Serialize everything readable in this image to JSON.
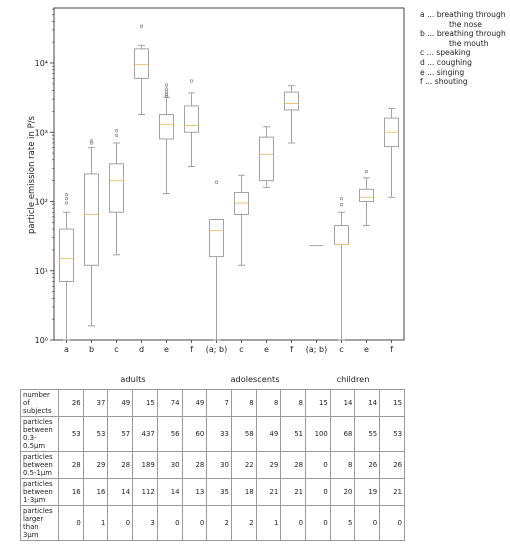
{
  "chart_data": {
    "type": "box",
    "ylabel": "particle emission rate in P/s",
    "yscale": "log",
    "ylim": [
      1,
      40000
    ],
    "yticks": [
      "10⁰",
      "10¹",
      "10²",
      "10³",
      "10⁴"
    ],
    "x_labels": [
      "a",
      "b",
      "c",
      "d",
      "e",
      "f",
      "(a; b)",
      "c",
      "e",
      "f",
      "(a; b)",
      "c",
      "e",
      "f"
    ],
    "boxes": [
      {
        "label": "a",
        "group": "adults",
        "whisker_low": 1,
        "q1": 7,
        "median": 15,
        "q3": 40,
        "whisker_high": 70,
        "outliers": [
          95,
          110,
          125
        ]
      },
      {
        "label": "b",
        "group": "adults",
        "whisker_low": 1.6,
        "q1": 12,
        "median": 65,
        "q3": 250,
        "whisker_high": 600,
        "outliers": [
          700,
          750
        ]
      },
      {
        "label": "c",
        "group": "adults",
        "whisker_low": 17,
        "q1": 70,
        "median": 200,
        "q3": 350,
        "whisker_high": 700,
        "outliers": [
          900,
          1050
        ]
      },
      {
        "label": "d",
        "group": "adults",
        "whisker_low": 1800,
        "q1": 6000,
        "median": 9500,
        "q3": 16000,
        "whisker_high": 18000,
        "outliers": [
          34000
        ]
      },
      {
        "label": "e",
        "group": "adults",
        "whisker_low": 130,
        "q1": 800,
        "median": 1300,
        "q3": 1800,
        "whisker_high": 3200,
        "outliers": [
          3300,
          3500,
          3800,
          4200,
          4800
        ]
      },
      {
        "label": "f",
        "group": "adults",
        "whisker_low": 320,
        "q1": 1000,
        "median": 1250,
        "q3": 2400,
        "whisker_high": 3700,
        "outliers": [
          5500
        ]
      },
      {
        "label": "(a; b)",
        "group": "adolescents",
        "whisker_low": 1,
        "q1": 16,
        "median": 38,
        "q3": 55,
        "whisker_high": 55,
        "outliers": [
          190
        ]
      },
      {
        "label": "c",
        "group": "adolescents",
        "whisker_low": 12,
        "q1": 65,
        "median": 95,
        "q3": 135,
        "whisker_high": 240,
        "outliers": []
      },
      {
        "label": "e",
        "group": "adolescents",
        "whisker_low": 160,
        "q1": 200,
        "median": 480,
        "q3": 850,
        "whisker_high": 1200,
        "outliers": []
      },
      {
        "label": "f",
        "group": "adolescents",
        "whisker_low": 700,
        "q1": 2100,
        "median": 2600,
        "q3": 3800,
        "whisker_high": 4700,
        "outliers": []
      },
      {
        "label": "(a; b)",
        "group": "children",
        "whisker_low": 23,
        "q1": 23,
        "median": 23,
        "q3": 23,
        "whisker_high": 23,
        "outliers": []
      },
      {
        "label": "c",
        "group": "children",
        "whisker_low": 1,
        "q1": 24,
        "median": 24,
        "q3": 45,
        "whisker_high": 70,
        "outliers": [
          90,
          110
        ]
      },
      {
        "label": "e",
        "group": "children",
        "whisker_low": 45,
        "q1": 100,
        "median": 115,
        "q3": 150,
        "whisker_high": 220,
        "outliers": [
          270
        ]
      },
      {
        "label": "f",
        "group": "children",
        "whisker_low": 115,
        "q1": 620,
        "median": 1000,
        "q3": 1600,
        "whisker_high": 2200,
        "outliers": []
      }
    ]
  },
  "legend": [
    "a ... breathing through",
    "the nose",
    "b ... breathing through",
    "the mouth",
    "c ... speaking",
    "d ... coughing",
    "e ... singing",
    "f ... shouting"
  ],
  "groups": [
    "adults",
    "adolescents",
    "children"
  ],
  "table": {
    "rows": [
      {
        "label": "number of subjects",
        "values": [
          26,
          37,
          49,
          15,
          74,
          49,
          7,
          8,
          8,
          8,
          15,
          14,
          14,
          15
        ]
      },
      {
        "label": "particles between 0.3-0.5μm",
        "values": [
          53,
          53,
          57,
          437,
          56,
          60,
          33,
          58,
          49,
          51,
          100,
          68,
          55,
          53
        ]
      },
      {
        "label": "particles between 0.5-1μm",
        "values": [
          28,
          29,
          28,
          189,
          30,
          28,
          30,
          22,
          29,
          28,
          0,
          8,
          26,
          26
        ]
      },
      {
        "label": "particles between 1-3μm",
        "values": [
          16,
          16,
          14,
          112,
          14,
          13,
          35,
          18,
          21,
          21,
          0,
          20,
          19,
          21
        ]
      },
      {
        "label": "particles larger than 3μm",
        "values": [
          0,
          1,
          0,
          3,
          0,
          0,
          2,
          2,
          1,
          0,
          0,
          5,
          0,
          0
        ]
      }
    ]
  },
  "colors": {
    "box": "#9a9a9a",
    "median": "#f0c27a",
    "axis": "#333333",
    "outlier": "#888888"
  }
}
